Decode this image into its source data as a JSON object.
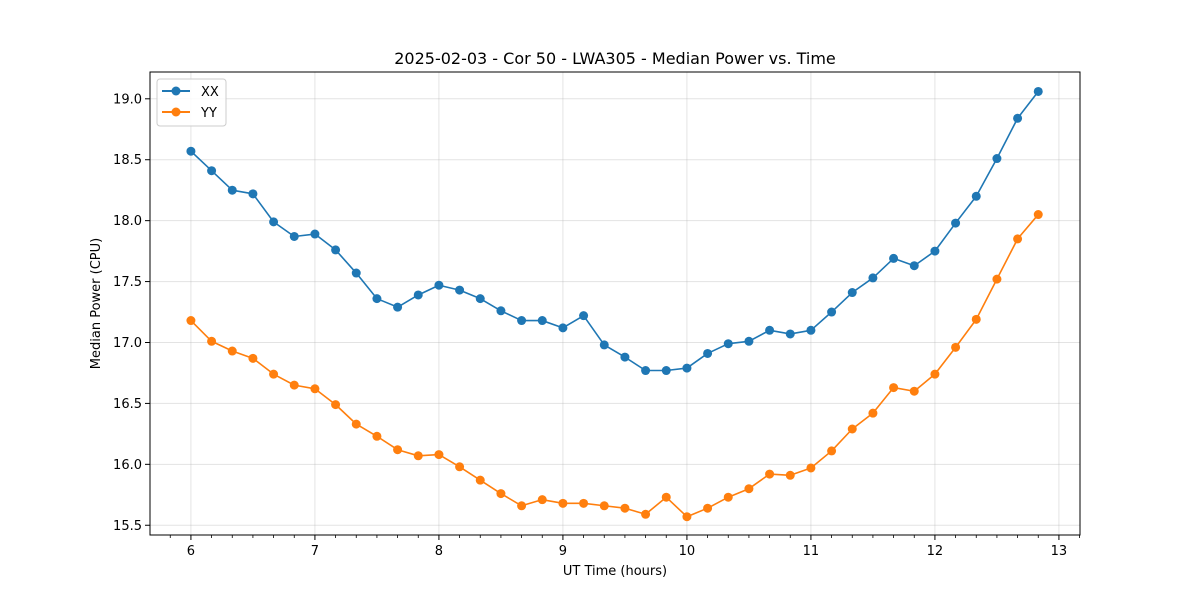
{
  "chart_data": {
    "type": "line",
    "title": "2025-02-03 - Cor 50 - LWA305 - Median Power vs. Time",
    "xlabel": "UT Time (hours)",
    "ylabel": "Median Power (CPU)",
    "xlim": [
      5.67,
      13.17
    ],
    "ylim": [
      15.42,
      19.22
    ],
    "xticks": [
      6,
      7,
      8,
      9,
      10,
      11,
      12,
      13
    ],
    "xtick_labels": [
      "6",
      "7",
      "8",
      "9",
      "10",
      "11",
      "12",
      "13"
    ],
    "yticks": [
      15.5,
      16.0,
      16.5,
      17.0,
      17.5,
      18.0,
      18.5,
      19.0
    ],
    "ytick_labels": [
      "15.5",
      "16.0",
      "16.5",
      "17.0",
      "17.5",
      "18.0",
      "18.5",
      "19.0"
    ],
    "grid": true,
    "legend_position": "top-left",
    "x": [
      6.0,
      6.1667,
      6.3333,
      6.5,
      6.6667,
      6.8333,
      7.0,
      7.1667,
      7.3333,
      7.5,
      7.6667,
      7.8333,
      8.0,
      8.1667,
      8.3333,
      8.5,
      8.6667,
      8.8333,
      9.0,
      9.1667,
      9.3333,
      9.5,
      9.6667,
      9.8333,
      10.0,
      10.1667,
      10.3333,
      10.5,
      10.6667,
      10.8333,
      11.0,
      11.1667,
      11.3333,
      11.5,
      11.6667,
      11.8333,
      12.0,
      12.1667,
      12.3333,
      12.5,
      12.6667,
      12.8333
    ],
    "series": [
      {
        "name": "XX",
        "color": "#1f77b4",
        "values": [
          18.57,
          18.41,
          18.25,
          18.22,
          17.99,
          17.87,
          17.89,
          17.76,
          17.57,
          17.36,
          17.29,
          17.39,
          17.47,
          17.43,
          17.36,
          17.26,
          17.18,
          17.18,
          17.12,
          17.22,
          16.98,
          16.88,
          16.77,
          16.77,
          16.79,
          16.91,
          16.99,
          17.01,
          17.1,
          17.07,
          17.1,
          17.25,
          17.41,
          17.53,
          17.69,
          17.63,
          17.75,
          17.98,
          18.2,
          18.51,
          18.84,
          19.06
        ]
      },
      {
        "name": "YY",
        "color": "#ff7f0e",
        "values": [
          17.18,
          17.01,
          16.93,
          16.87,
          16.74,
          16.65,
          16.62,
          16.49,
          16.33,
          16.23,
          16.12,
          16.07,
          16.08,
          15.98,
          15.87,
          15.76,
          15.66,
          15.71,
          15.68,
          15.68,
          15.66,
          15.64,
          15.59,
          15.73,
          15.57,
          15.64,
          15.73,
          15.8,
          15.92,
          15.91,
          15.97,
          16.11,
          16.29,
          16.42,
          16.63,
          16.6,
          16.74,
          16.96,
          17.19,
          17.52,
          17.85,
          18.05
        ]
      }
    ]
  }
}
